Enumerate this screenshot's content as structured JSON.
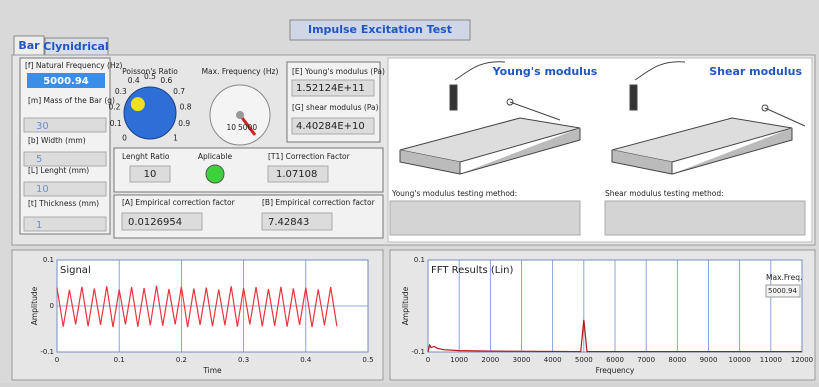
{
  "header": {
    "title": "Impulse Excitation Test",
    "tabs": [
      "Bar",
      "Clynidrical"
    ]
  },
  "inputs": {
    "natural_frequency": {
      "label": "[f] Natural Frequency (Hz)",
      "value": "5000.94"
    },
    "mass": {
      "label": "[m] Mass of the Bar (g)",
      "value": "30"
    },
    "width": {
      "label": "[b] Width (mm)",
      "value": "5"
    },
    "length": {
      "label": "[L] Lenght (mm)",
      "value": "10"
    },
    "thickness": {
      "label": "[t] Thickness (mm)",
      "value": "1"
    }
  },
  "poisson_ratio": {
    "label": "Poisson's Ratio",
    "scale": [
      0,
      0.1,
      0.2,
      0.3,
      0.4,
      0.5,
      0.6,
      0.7,
      0.8,
      0.9,
      1
    ],
    "value": 0.3
  },
  "max_frequency": {
    "label": "Max. Frequency (Hz)",
    "scale": [
      10,
      5000
    ]
  },
  "moduli": {
    "young": {
      "label": "[E] Young's modulus (Pa)",
      "value": "1.52124E+11"
    },
    "shear": {
      "label": "[G] shear modulus (Pa)",
      "value": "4.40284E+10"
    }
  },
  "ratio": {
    "label": "Lenght Ratio",
    "value": "10"
  },
  "applicable": {
    "label": "Aplicable",
    "on": true
  },
  "correction": {
    "label": "[T1] Correction Factor",
    "value": "1.07108"
  },
  "empirical_a": {
    "label": "[A] Empirical correction factor",
    "value": "0.0126954"
  },
  "empirical_b": {
    "label": "[B] Empirical correction factor",
    "value": "7.42843"
  },
  "methods": {
    "young_title": "Young's modulus",
    "shear_title": "Shear modulus",
    "young_label": "Young's modulus testing method:",
    "shear_label": "Shear modulus testing method:"
  },
  "chart_data": [
    {
      "type": "line",
      "title": "Signal",
      "x_label": "Time",
      "y_label": "Amplitude",
      "color": "#e8343c",
      "grid": true,
      "x": [
        0,
        0.01,
        0.02,
        0.03,
        0.04,
        0.05,
        0.06,
        0.07,
        0.08,
        0.09,
        0.1,
        0.11,
        0.12,
        0.13,
        0.14,
        0.15,
        0.16,
        0.17,
        0.18,
        0.19,
        0.2,
        0.21,
        0.22,
        0.23,
        0.24,
        0.25,
        0.26,
        0.27,
        0.28,
        0.29,
        0.3,
        0.31,
        0.32,
        0.33,
        0.34,
        0.35,
        0.36,
        0.37,
        0.38,
        0.39,
        0.4,
        0.41,
        0.42,
        0.43,
        0.44,
        0.45
      ],
      "values": [
        0.04,
        -0.045,
        0.035,
        -0.04,
        0.042,
        -0.044,
        0.038,
        -0.041,
        0.043,
        -0.046,
        0.036,
        -0.04,
        0.041,
        -0.045,
        0.039,
        -0.042,
        0.044,
        -0.043,
        0.037,
        -0.04,
        0.042,
        -0.046,
        0.038,
        -0.041,
        0.04,
        -0.044,
        0.036,
        -0.042,
        0.043,
        -0.045,
        0.039,
        -0.04,
        0.041,
        -0.044,
        0.037,
        -0.043,
        0.042,
        -0.045,
        0.038,
        -0.041,
        0.04,
        -0.046,
        0.036,
        -0.042,
        0.041,
        -0.044
      ],
      "xlim": [
        0,
        0.5
      ],
      "xticks": [
        0,
        0.1,
        0.2,
        0.3,
        0.4,
        0.5
      ],
      "ylim": [
        -0.1,
        0.1
      ],
      "yticks": [
        -0.1,
        0,
        0.1
      ]
    },
    {
      "type": "line",
      "title": "FFT Results (Lin)",
      "x_label": "Frequency",
      "y_label": "Amplitude",
      "color": "#b01818",
      "grid": true,
      "x": [
        0,
        50,
        100,
        200,
        300,
        500,
        1000,
        2000,
        4900,
        5000,
        5100,
        8000,
        12000
      ],
      "values": [
        -0.1,
        -0.085,
        -0.09,
        -0.088,
        -0.092,
        -0.095,
        -0.097,
        -0.098,
        -0.099,
        -0.03,
        -0.099,
        -0.099,
        -0.099
      ],
      "xlim": [
        0,
        12000
      ],
      "xticks": [
        0,
        1000,
        2000,
        3000,
        4000,
        5000,
        6000,
        7000,
        8000,
        9000,
        10000,
        11000,
        12000
      ],
      "ylim": [
        -0.1,
        0.1
      ],
      "yticks": [
        -0.1,
        0.1
      ],
      "indicator": {
        "label": "Max.Freq.",
        "value": "5000.94"
      }
    }
  ]
}
